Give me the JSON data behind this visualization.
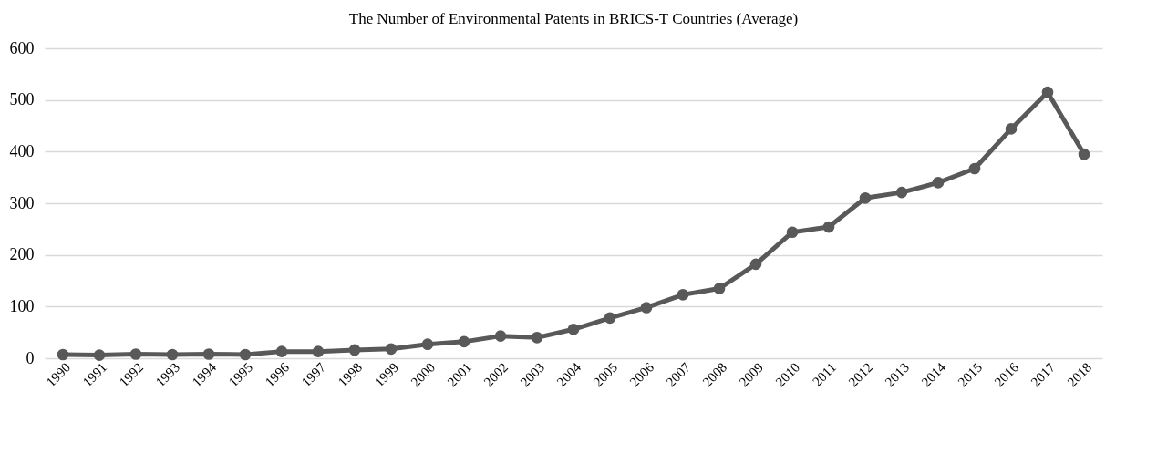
{
  "chart_data": {
    "type": "line",
    "title": "The Number of Environmental  Patents in BRICS-T Countries (Average)",
    "categories": [
      "1990",
      "1991",
      "1992",
      "1993",
      "1994",
      "1995",
      "1996",
      "1997",
      "1998",
      "1999",
      "2000",
      "2001",
      "2002",
      "2003",
      "2004",
      "2005",
      "2006",
      "2007",
      "2008",
      "2009",
      "2010",
      "2011",
      "2012",
      "2013",
      "2014",
      "2015",
      "2016",
      "2017",
      "2018"
    ],
    "series": [
      {
        "color": "#595959",
        "values": [
          7,
          6,
          8,
          7,
          8,
          7,
          13,
          13,
          16,
          18,
          27,
          32,
          43,
          40,
          56,
          78,
          98,
          123,
          135,
          182,
          244,
          254,
          310,
          321,
          340,
          367,
          444,
          515,
          395
        ]
      }
    ],
    "ylim": [
      0,
      600
    ],
    "yticks": [
      0,
      100,
      200,
      300,
      400,
      500,
      600
    ],
    "grid": "y",
    "marker": "circle",
    "line_style": "solid",
    "legend": false
  }
}
